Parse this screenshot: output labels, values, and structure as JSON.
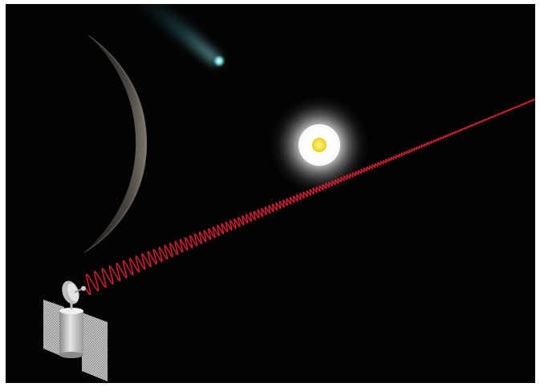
{
  "image": {
    "background_color": "#030303",
    "frame_color": "#ffffff",
    "objects": [
      {
        "name": "comet",
        "color": "#7ad8d8"
      },
      {
        "name": "moon-crescent",
        "color": "#6e6a66"
      },
      {
        "name": "sun",
        "core_color": "#f4e23a",
        "glow_color": "#ffffff"
      },
      {
        "name": "laser-beam",
        "color": "#d8283c"
      },
      {
        "name": "satellite",
        "body_color": "#c4c4c4",
        "panel_color": "#d6d6d6"
      }
    ]
  }
}
